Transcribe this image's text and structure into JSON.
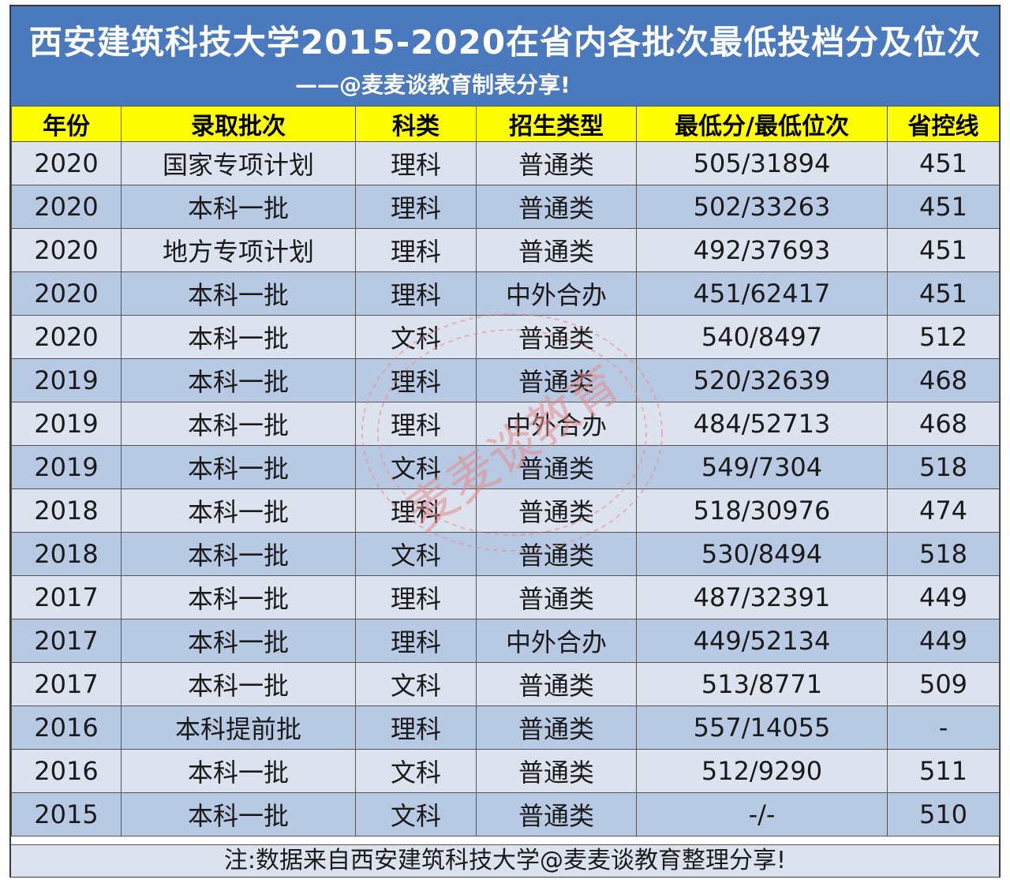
{
  "header": {
    "title": "西安建筑科技大学2015-2020在省内各批次最低投档分及位次",
    "subtitle": "——@麦麦谈教育制表分享!"
  },
  "table": {
    "columns": [
      "年份",
      "录取批次",
      "科类",
      "招生类型",
      "最低分/最低位次",
      "省控线"
    ],
    "rows": [
      [
        "2020",
        "国家专项计划",
        "理科",
        "普通类",
        "505/31894",
        "451"
      ],
      [
        "2020",
        "本科一批",
        "理科",
        "普通类",
        "502/33263",
        "451"
      ],
      [
        "2020",
        "地方专项计划",
        "理科",
        "普通类",
        "492/37693",
        "451"
      ],
      [
        "2020",
        "本科一批",
        "理科",
        "中外合办",
        "451/62417",
        "451"
      ],
      [
        "2020",
        "本科一批",
        "文科",
        "普通类",
        "540/8497",
        "512"
      ],
      [
        "2019",
        "本科一批",
        "理科",
        "普通类",
        "520/32639",
        "468"
      ],
      [
        "2019",
        "本科一批",
        "理科",
        "中外合办",
        "484/52713",
        "468"
      ],
      [
        "2019",
        "本科一批",
        "文科",
        "普通类",
        "549/7304",
        "518"
      ],
      [
        "2018",
        "本科一批",
        "理科",
        "普通类",
        "518/30976",
        "474"
      ],
      [
        "2018",
        "本科一批",
        "文科",
        "普通类",
        "530/8494",
        "518"
      ],
      [
        "2017",
        "本科一批",
        "理科",
        "普通类",
        "487/32391",
        "449"
      ],
      [
        "2017",
        "本科一批",
        "理科",
        "中外合办",
        "449/52134",
        "449"
      ],
      [
        "2017",
        "本科一批",
        "文科",
        "普通类",
        "513/8771",
        "509"
      ],
      [
        "2016",
        "本科提前批",
        "理科",
        "普通类",
        "557/14055",
        "-"
      ],
      [
        "2016",
        "本科一批",
        "文科",
        "普通类",
        "512/9290",
        "511"
      ],
      [
        "2015",
        "本科一批",
        "文科",
        "普通类",
        "-/-",
        "510"
      ]
    ]
  },
  "footer": {
    "note": "注:数据来自西安建筑科技大学@麦麦谈教育整理分享!"
  },
  "watermark": {
    "text": "麦麦谈教育",
    "color": "#e58a8a"
  },
  "colors": {
    "title_bg": "#4a79be",
    "header_bg": "#ffff00",
    "row_light": "#dce3ee",
    "row_dark": "#b8cae3"
  }
}
